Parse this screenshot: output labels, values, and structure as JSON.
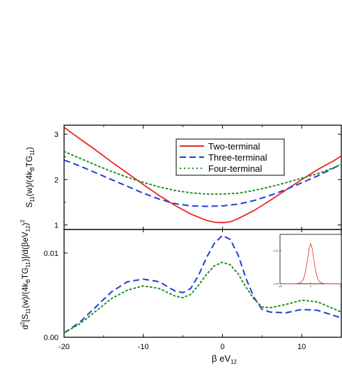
{
  "chart_data": [
    {
      "type": "line",
      "panel": "top",
      "ylabel_parts": [
        "S",
        "11",
        "(w)/(4k",
        "B",
        "TG",
        "11",
        ")"
      ],
      "xlim": [
        -20,
        15
      ],
      "ylim": [
        0.9,
        3.2
      ],
      "yticks": [
        1,
        2,
        3
      ],
      "legend": {
        "placement": "top-center",
        "boxed": true
      },
      "series": [
        {
          "name": "Two-terminal",
          "color": "#e8261f",
          "style": "solid",
          "x": [
            -20,
            -18,
            -16,
            -14,
            -12,
            -10,
            -8,
            -6,
            -4,
            -2,
            -1,
            0,
            1,
            2,
            4,
            6,
            8,
            10,
            12,
            14,
            15
          ],
          "y": [
            3.15,
            2.9,
            2.65,
            2.39,
            2.14,
            1.89,
            1.65,
            1.43,
            1.24,
            1.1,
            1.06,
            1.05,
            1.07,
            1.14,
            1.32,
            1.54,
            1.77,
            2.0,
            2.22,
            2.41,
            2.52
          ]
        },
        {
          "name": "Three-terminal",
          "color": "#1f3bd9",
          "style": "dashed",
          "x": [
            -20,
            -18,
            -16,
            -14,
            -12,
            -10,
            -8,
            -6,
            -4,
            -2,
            0,
            2,
            4,
            6,
            8,
            10,
            12,
            14,
            15
          ],
          "y": [
            2.43,
            2.3,
            2.15,
            2.0,
            1.85,
            1.7,
            1.57,
            1.47,
            1.42,
            1.41,
            1.42,
            1.46,
            1.54,
            1.65,
            1.78,
            1.93,
            2.08,
            2.25,
            2.34
          ]
        },
        {
          "name": "Four-terminal",
          "color": "#1e8f1e",
          "style": "dotted",
          "x": [
            -20,
            -18,
            -16,
            -14,
            -12,
            -10,
            -8,
            -6,
            -4,
            -2,
            0,
            2,
            4,
            6,
            8,
            10,
            12,
            14,
            15
          ],
          "y": [
            2.62,
            2.47,
            2.32,
            2.18,
            2.05,
            1.94,
            1.84,
            1.76,
            1.71,
            1.68,
            1.68,
            1.7,
            1.76,
            1.84,
            1.93,
            2.03,
            2.13,
            2.26,
            2.34
          ]
        }
      ]
    },
    {
      "type": "line",
      "panel": "bottom",
      "ylabel_parts": [
        "d",
        "2",
        "[S",
        "11",
        "(w)/(4k",
        "B",
        "TG",
        "11",
        ")]/d(βeV",
        "12",
        ")",
        "2"
      ],
      "xlabel_parts": [
        "β eV",
        "12"
      ],
      "xlim": [
        -20,
        15
      ],
      "xticks": [
        -20,
        -10,
        0,
        10
      ],
      "ylim": [
        0.0,
        0.0128
      ],
      "yticks": [
        0.0,
        0.01
      ],
      "ytick_labels": [
        "0.00",
        "0.01"
      ],
      "series": [
        {
          "name": "Three-terminal",
          "color": "#1f3bd9",
          "style": "dashed",
          "x": [
            -20,
            -18,
            -16,
            -14,
            -12,
            -10,
            -8,
            -6,
            -5,
            -4,
            -3,
            -2,
            -1,
            0,
            1,
            2,
            3,
            4,
            5,
            6,
            8,
            10,
            12,
            14,
            15
          ],
          "y": [
            0.0005,
            0.0018,
            0.0036,
            0.0054,
            0.0066,
            0.0069,
            0.0066,
            0.0055,
            0.0053,
            0.0058,
            0.0074,
            0.0095,
            0.0112,
            0.0121,
            0.0116,
            0.0097,
            0.0069,
            0.0047,
            0.0033,
            0.003,
            0.0029,
            0.0033,
            0.0032,
            0.0026,
            0.0023
          ]
        },
        {
          "name": "Four-terminal",
          "color": "#1e8f1e",
          "style": "dotted",
          "x": [
            -20,
            -18,
            -16,
            -14,
            -12,
            -10,
            -8,
            -6,
            -5,
            -4,
            -3,
            -2,
            -1,
            0,
            1,
            2,
            3,
            4,
            5,
            6,
            8,
            10,
            12,
            14,
            15
          ],
          "y": [
            0.0005,
            0.0016,
            0.0031,
            0.0046,
            0.0056,
            0.0061,
            0.0058,
            0.0049,
            0.0047,
            0.0051,
            0.0062,
            0.0075,
            0.0085,
            0.0089,
            0.0086,
            0.0075,
            0.0059,
            0.0045,
            0.0036,
            0.0035,
            0.0039,
            0.0044,
            0.0042,
            0.0034,
            0.003
          ]
        }
      ],
      "inset": {
        "color": "#e8261f",
        "xlim": [
          -20,
          20
        ],
        "xticks": [
          -20,
          0,
          20
        ],
        "ylim": [
          0,
          0.015
        ],
        "yticks": [
          0.0,
          0.01
        ],
        "ytick_labels": [
          "0.00",
          "0.01"
        ],
        "x": [
          -20,
          -10,
          -8,
          -6,
          -5,
          -4,
          -3,
          -2,
          -1,
          0,
          1,
          2,
          3,
          4,
          5,
          6,
          8,
          10,
          20
        ],
        "y": [
          0,
          0,
          0.0001,
          0.0005,
          0.0011,
          0.0024,
          0.0045,
          0.0075,
          0.0107,
          0.0122,
          0.0107,
          0.0075,
          0.0045,
          0.0024,
          0.0011,
          0.0005,
          0.0001,
          0,
          0
        ]
      }
    }
  ]
}
